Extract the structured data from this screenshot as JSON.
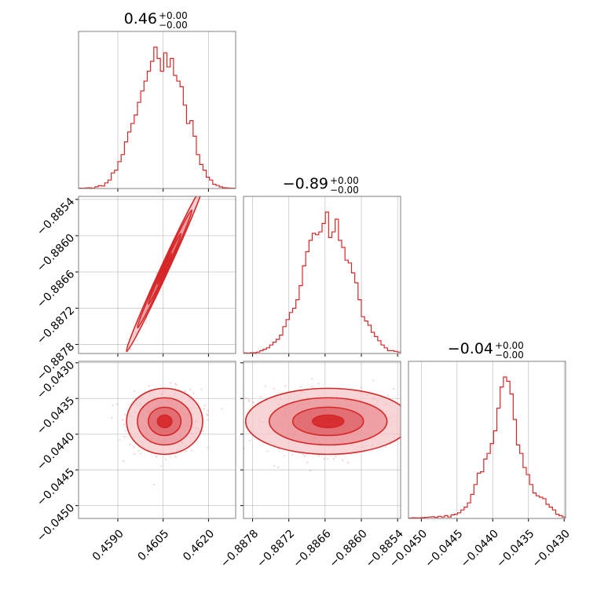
{
  "colors": {
    "series": "#d62728",
    "fill_light": "#f4c7c9",
    "fill_mid": "#e88a8e",
    "fill_dark": "#dd5a60",
    "grid": "#b0b0b0",
    "frame": "#7f7f7f"
  },
  "chart_data": {
    "type": "corner",
    "grid": true,
    "titles": [
      {
        "value": "0.46",
        "plus": "+0.00",
        "minus": "−0.00"
      },
      {
        "value": "−0.89",
        "plus": "+0.00",
        "minus": "−0.00"
      },
      {
        "value": "−0.04",
        "plus": "+0.00",
        "minus": "−0.00"
      }
    ],
    "params": [
      {
        "range": [
          0.4577,
          0.4629
        ],
        "ticks": [
          0.459,
          0.4605,
          0.462
        ],
        "tick_labels": [
          "0.4590",
          "0.4605",
          "0.4620"
        ]
      },
      {
        "range": [
          -0.88795,
          -0.88535
        ],
        "ticks": [
          -0.8878,
          -0.8872,
          -0.8866,
          -0.886,
          -0.8854
        ],
        "tick_labels": [
          "−0.8878",
          "−0.8872",
          "−0.8866",
          "−0.8860",
          "−0.8854"
        ]
      },
      {
        "range": [
          -0.04518,
          -0.04298
        ],
        "ticks": [
          -0.045,
          -0.0445,
          -0.044,
          -0.0435,
          -0.043
        ],
        "tick_labels": [
          "−0.0450",
          "−0.0445",
          "−0.0440",
          "−0.0435",
          "−0.0430"
        ]
      }
    ],
    "histograms": [
      {
        "param": 0,
        "bin_edges": [
          0.4577,
          0.4629
        ],
        "counts": [
          0.003,
          0.002,
          0.004,
          0.005,
          0.003,
          0.012,
          0.02,
          0.018,
          0.04,
          0.06,
          0.11,
          0.13,
          0.19,
          0.24,
          0.33,
          0.4,
          0.46,
          0.52,
          0.61,
          0.69,
          0.76,
          0.83,
          0.9,
          1.0,
          0.92,
          0.83,
          0.96,
          0.86,
          0.92,
          0.8,
          0.76,
          0.72,
          0.59,
          0.46,
          0.48,
          0.37,
          0.24,
          0.17,
          0.13,
          0.08,
          0.06,
          0.03,
          0.022,
          0.012,
          0.006,
          0.004,
          0.003,
          0.002
        ]
      },
      {
        "param": 1,
        "bin_edges": [
          -0.88795,
          -0.88535
        ],
        "counts": [
          0.004,
          0.003,
          0.005,
          0.006,
          0.01,
          0.02,
          0.03,
          0.04,
          0.06,
          0.08,
          0.1,
          0.13,
          0.19,
          0.24,
          0.29,
          0.32,
          0.38,
          0.48,
          0.62,
          0.72,
          0.8,
          0.85,
          0.84,
          0.86,
          0.92,
          1.0,
          0.82,
          0.86,
          0.95,
          0.8,
          0.75,
          0.66,
          0.64,
          0.57,
          0.5,
          0.38,
          0.26,
          0.23,
          0.2,
          0.15,
          0.12,
          0.09,
          0.06,
          0.04,
          0.02,
          0.02,
          0.015,
          0.01
        ]
      },
      {
        "param": 2,
        "bin_edges": [
          -0.04518,
          -0.04298
        ],
        "counts": [
          0.003,
          0.005,
          0.004,
          0.004,
          0.006,
          0.008,
          0.01,
          0.012,
          0.008,
          0.015,
          0.01,
          0.02,
          0.01,
          0.025,
          0.03,
          0.04,
          0.06,
          0.08,
          0.11,
          0.17,
          0.24,
          0.32,
          0.33,
          0.42,
          0.46,
          0.53,
          0.62,
          0.78,
          0.93,
          1.0,
          0.97,
          0.88,
          0.7,
          0.52,
          0.46,
          0.36,
          0.31,
          0.24,
          0.18,
          0.16,
          0.15,
          0.14,
          0.1,
          0.08,
          0.06,
          0.03,
          0.02,
          0.01
        ]
      }
    ],
    "scatter_2d": [
      {
        "x_param": 0,
        "y_param": 1,
        "center": [
          0.46055,
          -0.88655
        ],
        "spread": [
          0.0006,
          0.00065
        ],
        "correlation": 0.995
      },
      {
        "x_param": 0,
        "y_param": 2,
        "center": [
          0.46055,
          -0.04382
        ],
        "spread": [
          0.0006,
          0.00022
        ],
        "correlation": 0.0
      },
      {
        "x_param": 1,
        "y_param": 2,
        "center": [
          -0.88655,
          -0.04382
        ],
        "spread": [
          0.00065,
          0.00022
        ],
        "correlation": 0.0
      }
    ]
  }
}
